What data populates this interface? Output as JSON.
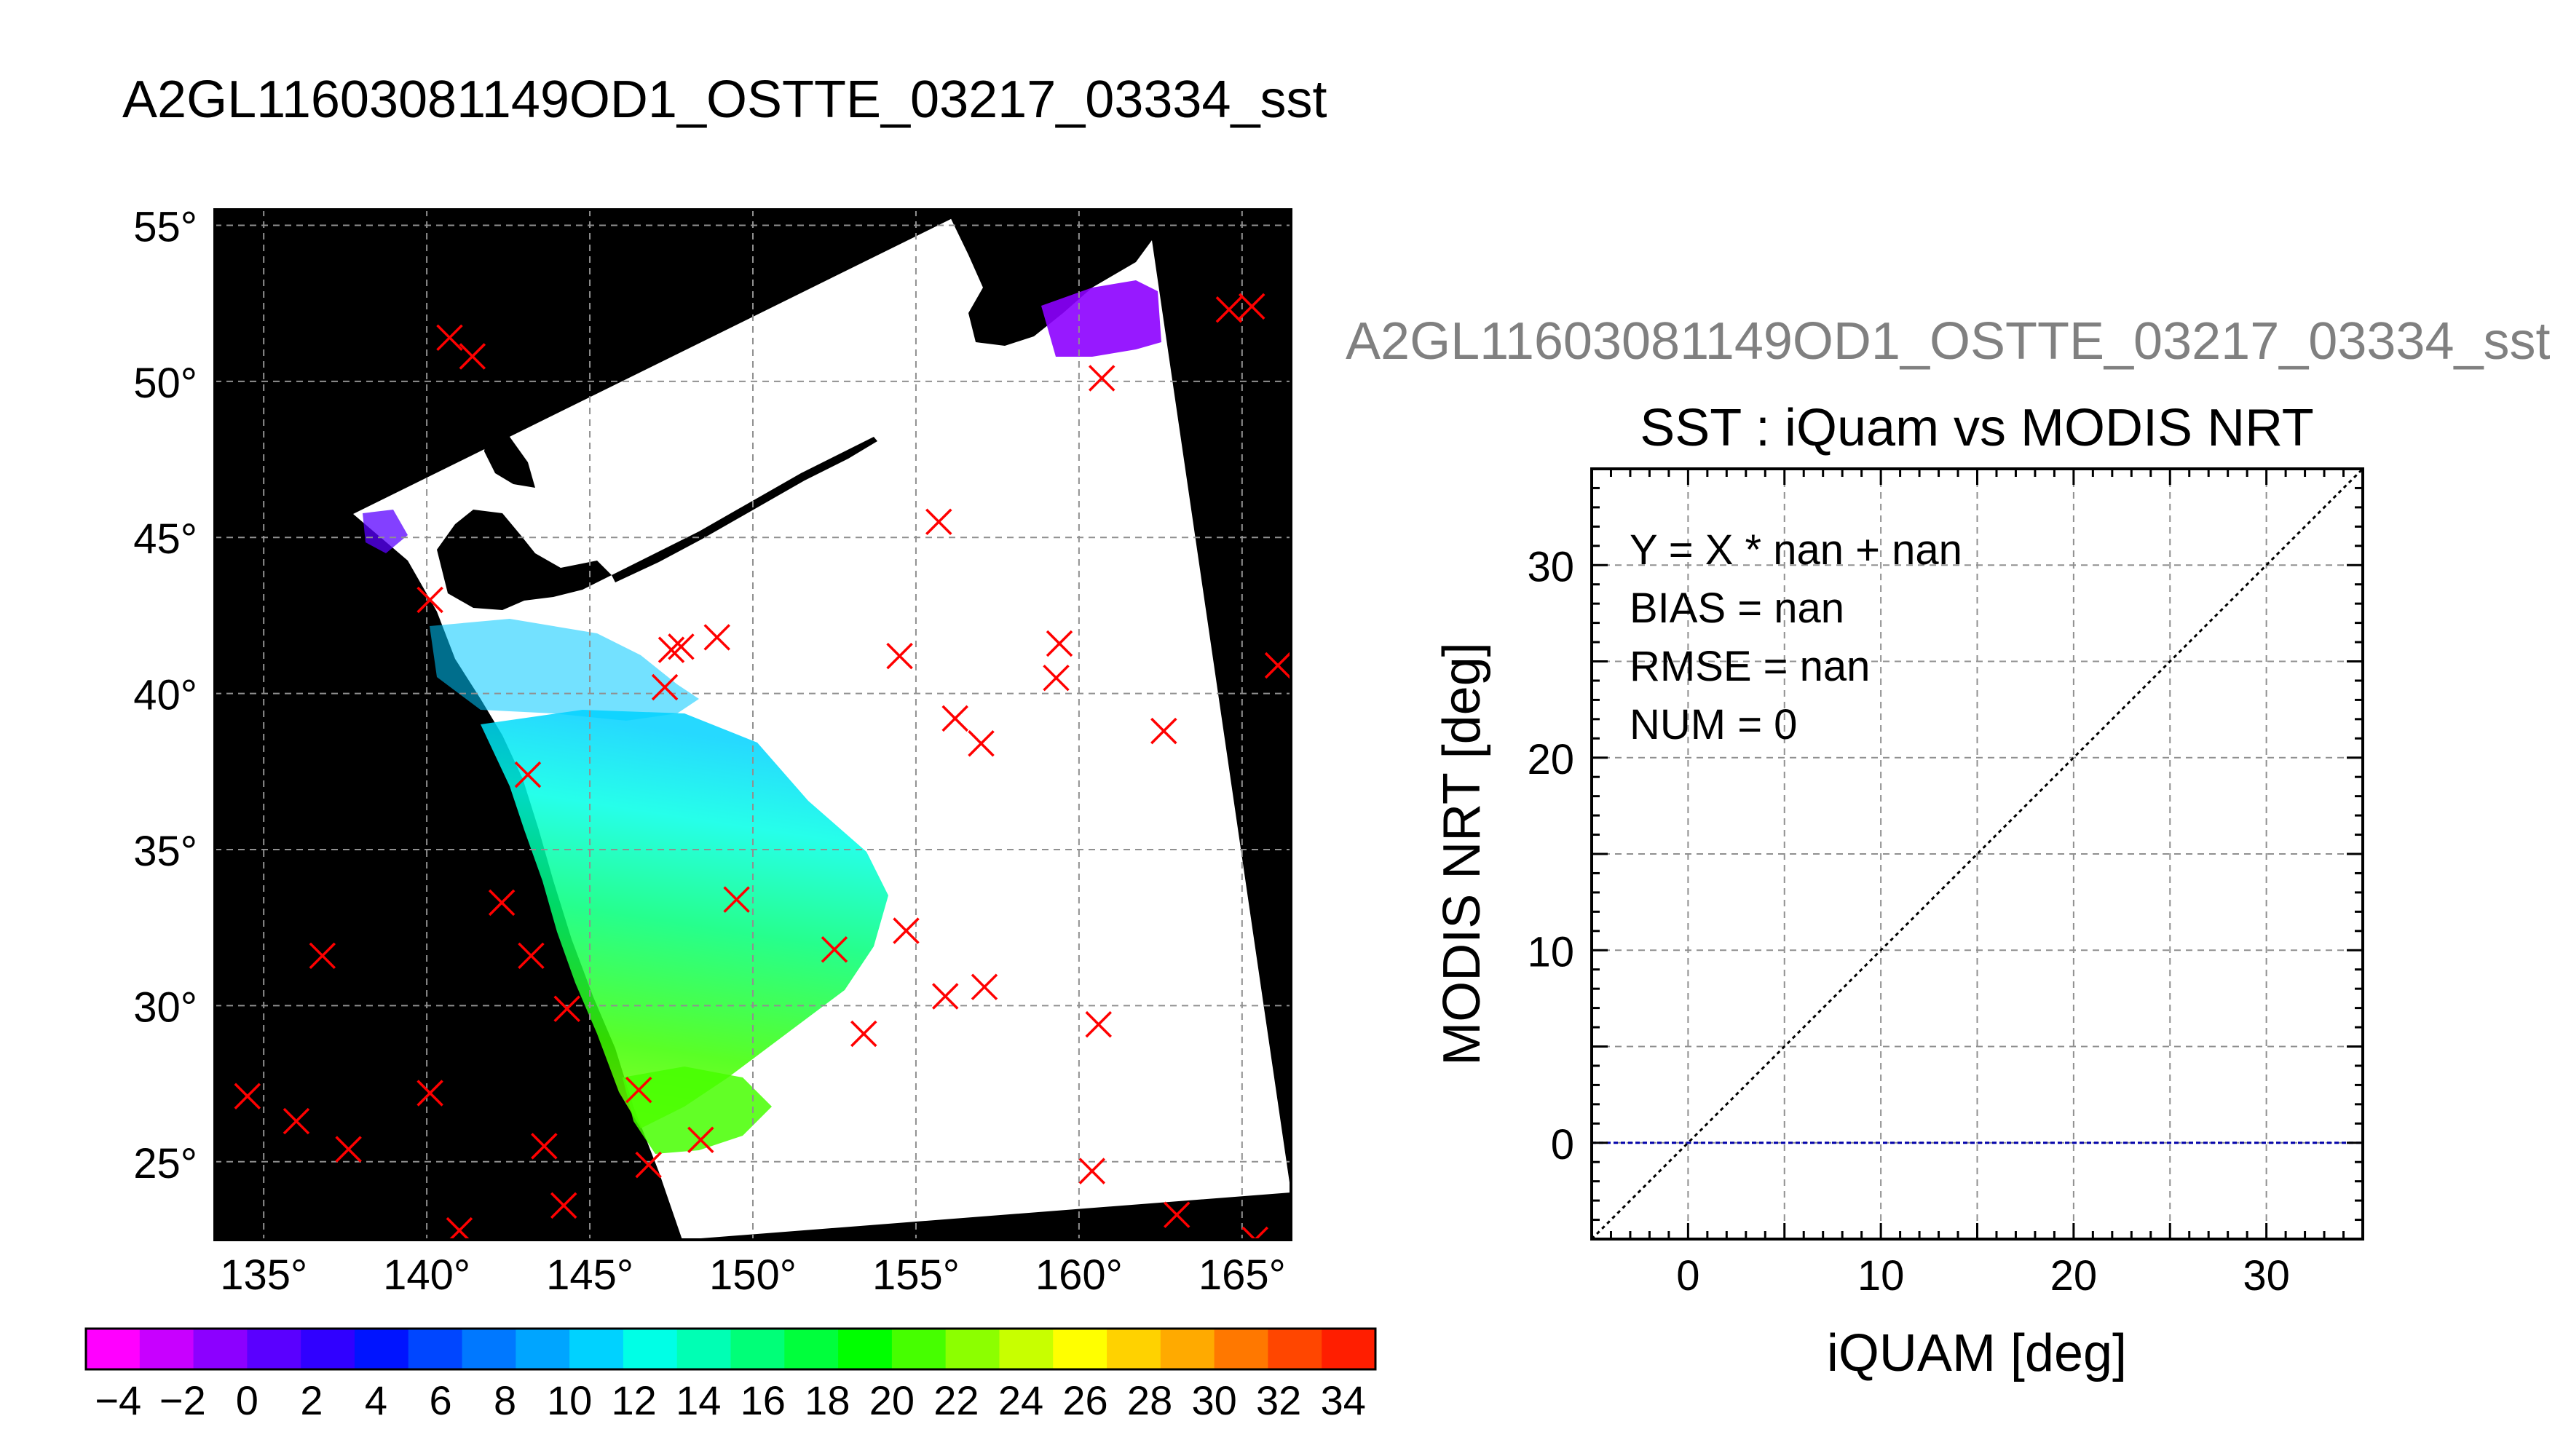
{
  "page_title": "A2GL11603081149OD1_OSTTE_03217_03334_sst",
  "secondary_title": "A2GL11603081149OD1_OSTTE_03217_03334_sst",
  "chart_data": [
    {
      "type": "map",
      "title": "A2GL11603081149OD1_OSTTE_03217_03334_sst",
      "xlim": [
        133.5,
        166.5
      ],
      "ylim": [
        22.5,
        55.5
      ],
      "lon_ticks": [
        135,
        140,
        145,
        150,
        155,
        160,
        165
      ],
      "lat_ticks": [
        55,
        50,
        45,
        40,
        35,
        30,
        25
      ],
      "grid": true,
      "marker_color": "#ff0000",
      "points": [
        {
          "lon": 140.7,
          "lat": 51.4
        },
        {
          "lon": 141.4,
          "lat": 50.8
        },
        {
          "lon": 160.7,
          "lat": 50.1
        },
        {
          "lon": 164.6,
          "lat": 52.3
        },
        {
          "lon": 165.3,
          "lat": 52.4
        },
        {
          "lon": 155.7,
          "lat": 45.5
        },
        {
          "lon": 140.1,
          "lat": 43.0
        },
        {
          "lon": 147.8,
          "lat": 41.5
        },
        {
          "lon": 147.5,
          "lat": 41.4
        },
        {
          "lon": 148.9,
          "lat": 41.8
        },
        {
          "lon": 154.5,
          "lat": 41.2
        },
        {
          "lon": 159.4,
          "lat": 41.6
        },
        {
          "lon": 159.3,
          "lat": 40.5
        },
        {
          "lon": 147.3,
          "lat": 40.2
        },
        {
          "lon": 156.2,
          "lat": 39.2
        },
        {
          "lon": 157.0,
          "lat": 38.4
        },
        {
          "lon": 162.6,
          "lat": 38.8
        },
        {
          "lon": 166.1,
          "lat": 40.9
        },
        {
          "lon": 143.1,
          "lat": 37.4
        },
        {
          "lon": 142.3,
          "lat": 33.3
        },
        {
          "lon": 149.5,
          "lat": 33.4
        },
        {
          "lon": 154.7,
          "lat": 32.4
        },
        {
          "lon": 152.5,
          "lat": 31.8
        },
        {
          "lon": 136.8,
          "lat": 31.6
        },
        {
          "lon": 143.2,
          "lat": 31.6
        },
        {
          "lon": 144.3,
          "lat": 29.9
        },
        {
          "lon": 155.9,
          "lat": 30.3
        },
        {
          "lon": 157.1,
          "lat": 30.6
        },
        {
          "lon": 153.4,
          "lat": 29.1
        },
        {
          "lon": 160.6,
          "lat": 29.4
        },
        {
          "lon": 134.5,
          "lat": 27.1
        },
        {
          "lon": 140.1,
          "lat": 27.2
        },
        {
          "lon": 146.5,
          "lat": 27.3
        },
        {
          "lon": 136.0,
          "lat": 26.3
        },
        {
          "lon": 137.6,
          "lat": 25.4
        },
        {
          "lon": 143.6,
          "lat": 25.5
        },
        {
          "lon": 148.4,
          "lat": 25.7
        },
        {
          "lon": 146.8,
          "lat": 24.9
        },
        {
          "lon": 160.4,
          "lat": 24.7
        },
        {
          "lon": 144.2,
          "lat": 23.6
        },
        {
          "lon": 141.0,
          "lat": 22.8
        },
        {
          "lon": 163.0,
          "lat": 23.3
        },
        {
          "lon": 165.4,
          "lat": 22.5
        }
      ]
    },
    {
      "type": "colorbar",
      "min": -5,
      "max": 35,
      "tick_labels": [
        "−4",
        "−2",
        "0",
        "2",
        "4",
        "6",
        "8",
        "10",
        "12",
        "14",
        "16",
        "18",
        "20",
        "22",
        "24",
        "26",
        "28",
        "30",
        "32",
        "34"
      ],
      "colors": [
        "#ff00ff",
        "#c800ff",
        "#8c00ff",
        "#5a00ff",
        "#3000ff",
        "#0014ff",
        "#0046ff",
        "#0078ff",
        "#00a5ff",
        "#00d2ff",
        "#00ffe6",
        "#00ffb4",
        "#00ff78",
        "#00ff3c",
        "#00ff00",
        "#46ff00",
        "#8cff00",
        "#c8ff00",
        "#ffff00",
        "#ffd200",
        "#ffaa00",
        "#ff7800",
        "#ff4600",
        "#ff1e00"
      ]
    },
    {
      "type": "scatter",
      "title": "SST : iQuam vs MODIS NRT",
      "xlabel": "iQUAM [deg]",
      "ylabel": "MODIS NRT [deg]",
      "xlim": [
        -5,
        35
      ],
      "ylim": [
        -5,
        35
      ],
      "x_ticks": [
        "0",
        "10",
        "20",
        "30"
      ],
      "y_ticks": [
        "0",
        "10",
        "20",
        "30"
      ],
      "grid": true,
      "series": [],
      "reference_line": {
        "type": "identity",
        "color": "#000000"
      },
      "fit_line": {
        "y": 0,
        "color": "#0000aa"
      },
      "annotations": [
        "Y = X * nan + nan",
        "BIAS = nan",
        "RMSE = nan",
        "NUM = 0"
      ]
    }
  ]
}
